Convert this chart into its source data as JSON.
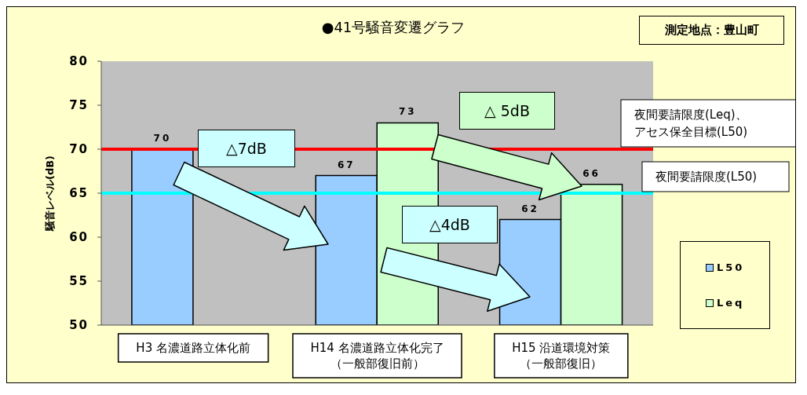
{
  "chart_data": {
    "type": "bar",
    "title": "●41号騒音変遷グラフ",
    "ylabel": "騒音レベル(dB)",
    "categories": [
      "H3 名濃道路立体化前",
      "H14 名濃道路立体化完了（一般部復旧前）",
      "H15 沿道環境対策（一般部復旧）"
    ],
    "series": [
      {
        "name": "L50",
        "color": "#99ccff",
        "values": [
          70,
          67,
          62
        ]
      },
      {
        "name": "Leq",
        "color": "#ccffcc",
        "values": [
          null,
          73,
          66
        ]
      }
    ],
    "ylim": [
      50,
      80
    ],
    "yticks": [
      50,
      55,
      60,
      65,
      70,
      75,
      80
    ],
    "data_labels": true,
    "legend": "right",
    "ref_lines": [
      {
        "axis": "y",
        "value": 70,
        "label": "夜間要請限度(Leq)、アセス保全目標(L50)",
        "color": "#ff0000"
      },
      {
        "axis": "y",
        "value": 65,
        "label": "夜間要請限度(L50)",
        "color": "#00ffff"
      }
    ],
    "annotations": [
      "△7dB",
      "△ 5dB",
      "△4dB",
      "測定地点：豊山町"
    ]
  }
}
